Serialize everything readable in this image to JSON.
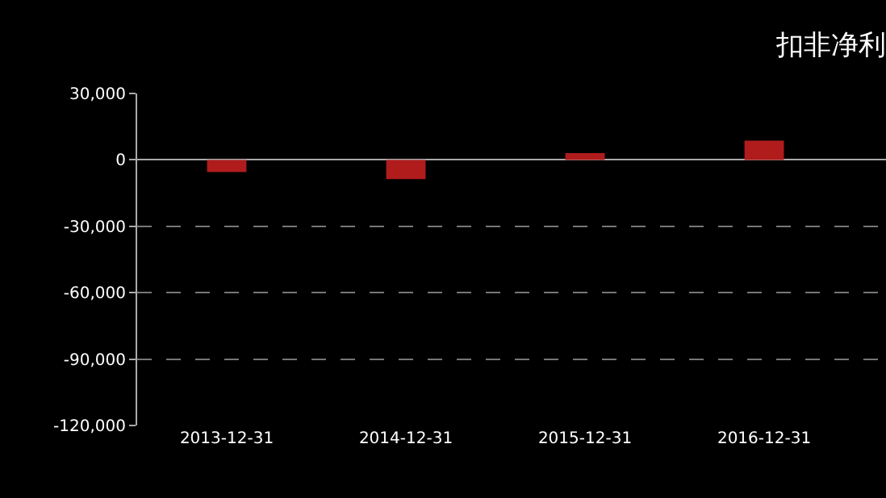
{
  "chart_data": {
    "type": "bar",
    "title": "扣非净利",
    "categories": [
      "2013-12-31",
      "2014-12-31",
      "2015-12-31",
      "2016-12-31"
    ],
    "values": [
      -5500,
      -8700,
      3100,
      8700
    ],
    "color": "#b01c1c",
    "ylim": [
      -120000,
      30000
    ],
    "yticks": [
      {
        "value": 30000,
        "label": "30,000"
      },
      0,
      {
        "value": -30000,
        "label": "-30,000"
      },
      {
        "value": -60000,
        "label": "-60,000"
      },
      {
        "value": -90000,
        "label": "-90,000"
      },
      {
        "value": -120000,
        "label": "-120,000"
      }
    ],
    "grid": "y",
    "legend": false
  }
}
